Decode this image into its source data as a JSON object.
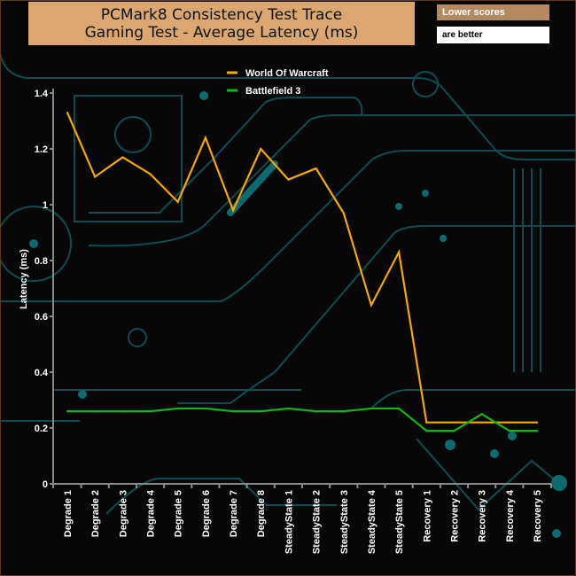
{
  "title_line1": "PCMark8 Consistency Test Trace",
  "title_line2": "Gaming Test -  Average Latency (ms)",
  "note_line1": "Lower scores",
  "note_line2": "are better",
  "colors": {
    "title_bg": "#dca670",
    "wow": "#f5a800",
    "bf3": "#12b812",
    "circuit": "#0d5a5e"
  },
  "chart_data": {
    "type": "line",
    "title": "PCMark8 Consistency Test Trace Gaming Test -  Average Latency (ms)",
    "xlabel": "",
    "ylabel": "Latency (ms)",
    "ylim": [
      0,
      1.4
    ],
    "yticks": [
      "0",
      "0.2",
      "0.4",
      "0.6",
      "0.8",
      "1",
      "1.2",
      "1.4"
    ],
    "legend_position": "top-center",
    "grid": false,
    "categories": [
      "Degrade 1",
      "Degrade 2",
      "Degrade 3",
      "Degrade 4",
      "Degrade 5",
      "Degrade 6",
      "Degrade 7",
      "Degrade 8",
      "SteadyState 1",
      "SteadyState 2",
      "SteadyState 3",
      "SteadyState 4",
      "SteadyState 5",
      "Recovery 1",
      "Recovery 2",
      "Recovery 3",
      "Recovery 4",
      "Recovery 5"
    ],
    "series": [
      {
        "name": "World Of Warcraft",
        "color": "#f5a800",
        "values": [
          1.33,
          1.1,
          1.17,
          1.11,
          1.01,
          1.24,
          0.98,
          1.2,
          1.09,
          1.13,
          0.97,
          0.64,
          0.83,
          0.22,
          0.22,
          0.22,
          0.22,
          0.22
        ]
      },
      {
        "name": "Battlefield 3",
        "color": "#12b812",
        "values": [
          0.26,
          0.26,
          0.26,
          0.26,
          0.27,
          0.27,
          0.26,
          0.26,
          0.27,
          0.26,
          0.26,
          0.27,
          0.27,
          0.19,
          0.19,
          0.25,
          0.19,
          0.19
        ]
      }
    ]
  }
}
